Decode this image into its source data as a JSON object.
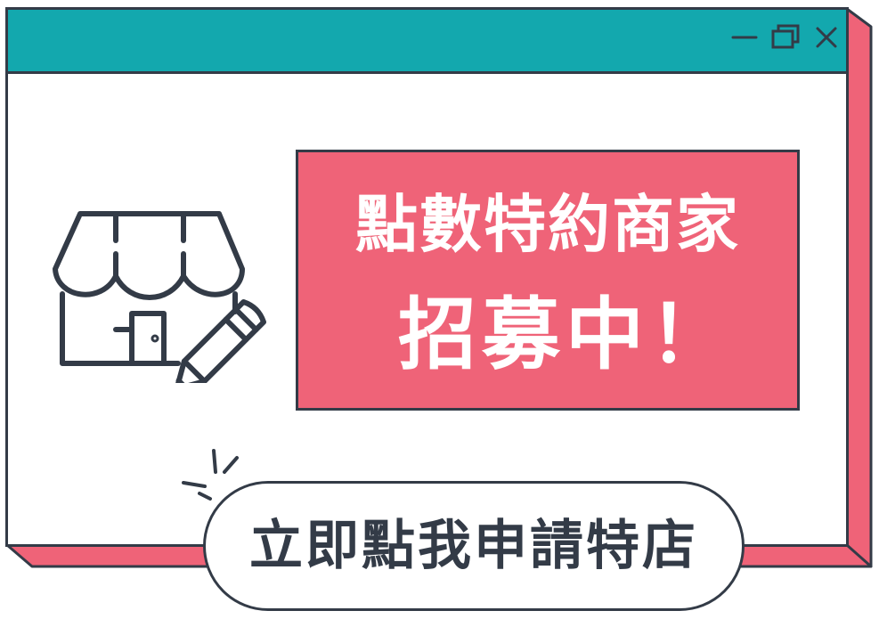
{
  "window": {
    "controls": [
      "minimize-icon",
      "maximize-icon",
      "close-icon"
    ],
    "colors": {
      "titlebar": "#13a8ae",
      "shadow": "#ef6378",
      "outline": "#333b47"
    }
  },
  "banner": {
    "line1": "點數特約商家",
    "line2": "招募中！",
    "background": "#ef6378"
  },
  "illustration": {
    "icon": "store-edit-icon"
  },
  "cta": {
    "label": "立即點我申請特店"
  }
}
